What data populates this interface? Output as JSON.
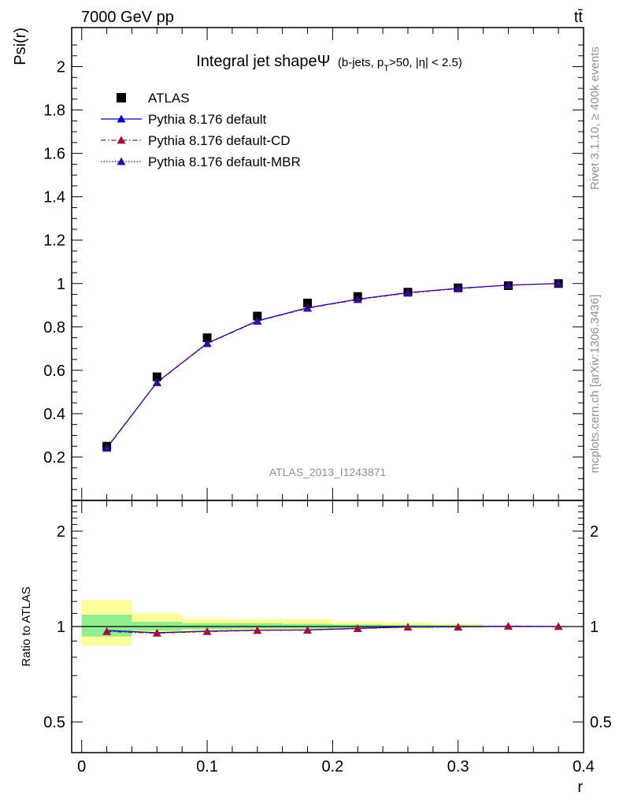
{
  "header": {
    "energy_label": "7000 GeV pp",
    "process_label": "tt̄"
  },
  "side_text": {
    "rivet": "Rivet 3.1.10, ≥ 400k events",
    "source": "mcplots.cern.ch [arXiv:1306.3436]"
  },
  "chart_data": [
    {
      "type": "line",
      "title": "Integral jet shapeΨ",
      "title_suffix": "(b-jets, p_T>50, |η| < 2.5)",
      "title_suffix_parts": {
        "pre": "(b-jets, p",
        "sub": "T",
        "post": ">50, |η| < 2.5)"
      },
      "ylabel": "Psi(r)",
      "xlabel": "r",
      "analysis_label": "ATLAS_2013_I1243871",
      "xlim": [
        -0.008,
        0.4
      ],
      "ylim": [
        0,
        2.18
      ],
      "y_ticks": [
        0.2,
        0.4,
        0.6,
        0.8,
        1,
        1.2,
        1.4,
        1.6,
        1.8,
        2
      ],
      "y_tick_labels": [
        "0.2",
        "0.4",
        "0.6",
        "0.8",
        "1",
        "1.2",
        "1.4",
        "1.6",
        "1.8",
        "2"
      ],
      "x": [
        0.02,
        0.06,
        0.1,
        0.14,
        0.18,
        0.22,
        0.26,
        0.3,
        0.34,
        0.38
      ],
      "legend": {
        "position": "top-left"
      },
      "series": [
        {
          "name": "ATLAS",
          "marker": "square",
          "color": "#000000",
          "values": [
            0.25,
            0.57,
            0.75,
            0.85,
            0.91,
            0.94,
            0.96,
            0.98,
            0.99,
            1.0
          ]
        },
        {
          "name": "Pythia 8.176 default",
          "marker": "triangle",
          "line": "solid",
          "color": "#0000cc",
          "values": [
            0.243,
            0.545,
            0.725,
            0.828,
            0.888,
            0.928,
            0.958,
            0.978,
            0.993,
            1.0
          ]
        },
        {
          "name": "Pythia 8.176 default-CD",
          "marker": "triangle",
          "line": "dashdot",
          "color": "#a0103a",
          "values": [
            0.241,
            0.543,
            0.723,
            0.826,
            0.886,
            0.926,
            0.956,
            0.976,
            0.992,
            1.0
          ]
        },
        {
          "name": "Pythia 8.176 default-MBR",
          "marker": "triangle",
          "line": "dotted",
          "color": "#2c0a9e",
          "values": [
            0.242,
            0.544,
            0.724,
            0.827,
            0.887,
            0.927,
            0.957,
            0.977,
            0.992,
            1.0
          ]
        }
      ]
    },
    {
      "type": "line",
      "ylabel": "Ratio to ATLAS",
      "xlabel": "r",
      "xlim": [
        -0.008,
        0.4
      ],
      "ylim": [
        0.4,
        2.5
      ],
      "y_scale": "log",
      "y_ticks": [
        0.5,
        1,
        2
      ],
      "y_tick_labels": [
        "0.5",
        "1",
        "2"
      ],
      "x_ticks": [
        0,
        0.1,
        0.2,
        0.3,
        0.4
      ],
      "x_tick_labels": [
        "0",
        "0.1",
        "0.2",
        "0.3",
        "0.4"
      ],
      "x": [
        0.02,
        0.06,
        0.1,
        0.14,
        0.18,
        0.22,
        0.26,
        0.3,
        0.34,
        0.38
      ],
      "uncertainty_bands": {
        "bins": [
          [
            0.0,
            0.04
          ],
          [
            0.04,
            0.08
          ],
          [
            0.08,
            0.12
          ],
          [
            0.12,
            0.16
          ],
          [
            0.16,
            0.2
          ],
          [
            0.2,
            0.24
          ],
          [
            0.24,
            0.28
          ],
          [
            0.28,
            0.32
          ],
          [
            0.32,
            0.36
          ],
          [
            0.36,
            0.4
          ]
        ],
        "inner": {
          "color": "#90ee90",
          "low": [
            0.93,
            0.97,
            0.98,
            0.985,
            0.985,
            0.99,
            0.99,
            0.995,
            0.997,
            0.999
          ],
          "high": [
            1.09,
            1.035,
            1.025,
            1.025,
            1.02,
            1.015,
            1.012,
            1.01,
            1.004,
            1.001
          ]
        },
        "outer": {
          "color": "#ffff99",
          "low": [
            0.87,
            0.95,
            0.965,
            0.975,
            0.975,
            0.985,
            0.985,
            0.99,
            0.996,
            0.998
          ],
          "high": [
            1.21,
            1.1,
            1.06,
            1.055,
            1.055,
            1.035,
            1.03,
            1.02,
            1.006,
            1.002
          ]
        }
      },
      "series": [
        {
          "name": "Pythia 8.176 default",
          "color": "#0000cc",
          "values": [
            0.972,
            0.956,
            0.967,
            0.974,
            0.976,
            0.987,
            0.998,
            0.998,
            1.003,
            1.0
          ]
        },
        {
          "name": "Pythia 8.176 default-CD",
          "color": "#a0103a",
          "values": [
            0.964,
            0.953,
            0.964,
            0.972,
            0.974,
            0.985,
            0.996,
            0.996,
            1.002,
            1.0
          ]
        },
        {
          "name": "Pythia 8.176 default-MBR",
          "color": "#2c0a9e",
          "values": [
            0.968,
            0.954,
            0.965,
            0.973,
            0.975,
            0.986,
            0.997,
            0.997,
            1.002,
            1.0
          ]
        }
      ]
    }
  ]
}
